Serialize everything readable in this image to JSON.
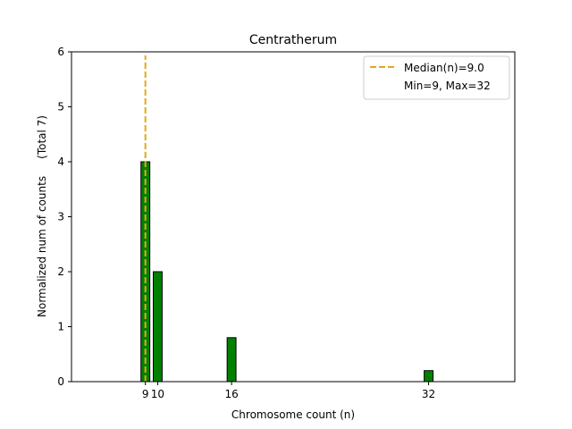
{
  "chart_data": {
    "type": "bar",
    "title": "Centratherum",
    "xlabel": "Chromosome count (n)",
    "ylabel": "Normalized num of counts     (Total 7)",
    "xlim": [
      3,
      39
    ],
    "ylim": [
      0,
      6
    ],
    "xticks": [
      9,
      10,
      16,
      32
    ],
    "xtick_labels": [
      "9",
      "10",
      "16",
      "32"
    ],
    "yticks": [
      0,
      1,
      2,
      3,
      4,
      5,
      6
    ],
    "bars": [
      {
        "x": 9,
        "value": 4
      },
      {
        "x": 10,
        "value": 2
      },
      {
        "x": 16,
        "value": 0.8
      },
      {
        "x": 32,
        "value": 0.2
      }
    ],
    "bar_color": "#008000",
    "median": 9.0,
    "median_color": "#e6a817",
    "legend": {
      "position": "top-right",
      "entries": [
        "Median(n)=9.0",
        "Min=9, Max=32"
      ]
    }
  }
}
